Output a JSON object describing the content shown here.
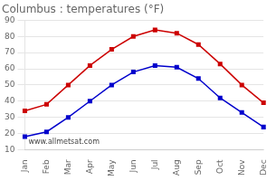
{
  "chart_data": {
    "type": "line",
    "title": "Columbus : temperatures (°F)",
    "categories": [
      "Jan",
      "Feb",
      "Mar",
      "Apr",
      "May",
      "Jun",
      "Jul",
      "Aug",
      "Sep",
      "Oct",
      "Nov",
      "Dec"
    ],
    "series": [
      {
        "color": "#cc0000",
        "values": [
          34,
          38,
          50,
          62,
          72,
          80,
          84,
          82,
          75,
          63,
          50,
          39
        ]
      },
      {
        "color": "#0000cc",
        "values": [
          18,
          21,
          30,
          40,
          50,
          58,
          62,
          61,
          54,
          42,
          33,
          24
        ]
      }
    ],
    "marker": "square",
    "ylim": [
      10,
      90
    ],
    "yticks": [
      10,
      20,
      30,
      40,
      50,
      60,
      70,
      80,
      90
    ],
    "grid": true,
    "annotations": [
      "www.allmetsat.com"
    ]
  }
}
